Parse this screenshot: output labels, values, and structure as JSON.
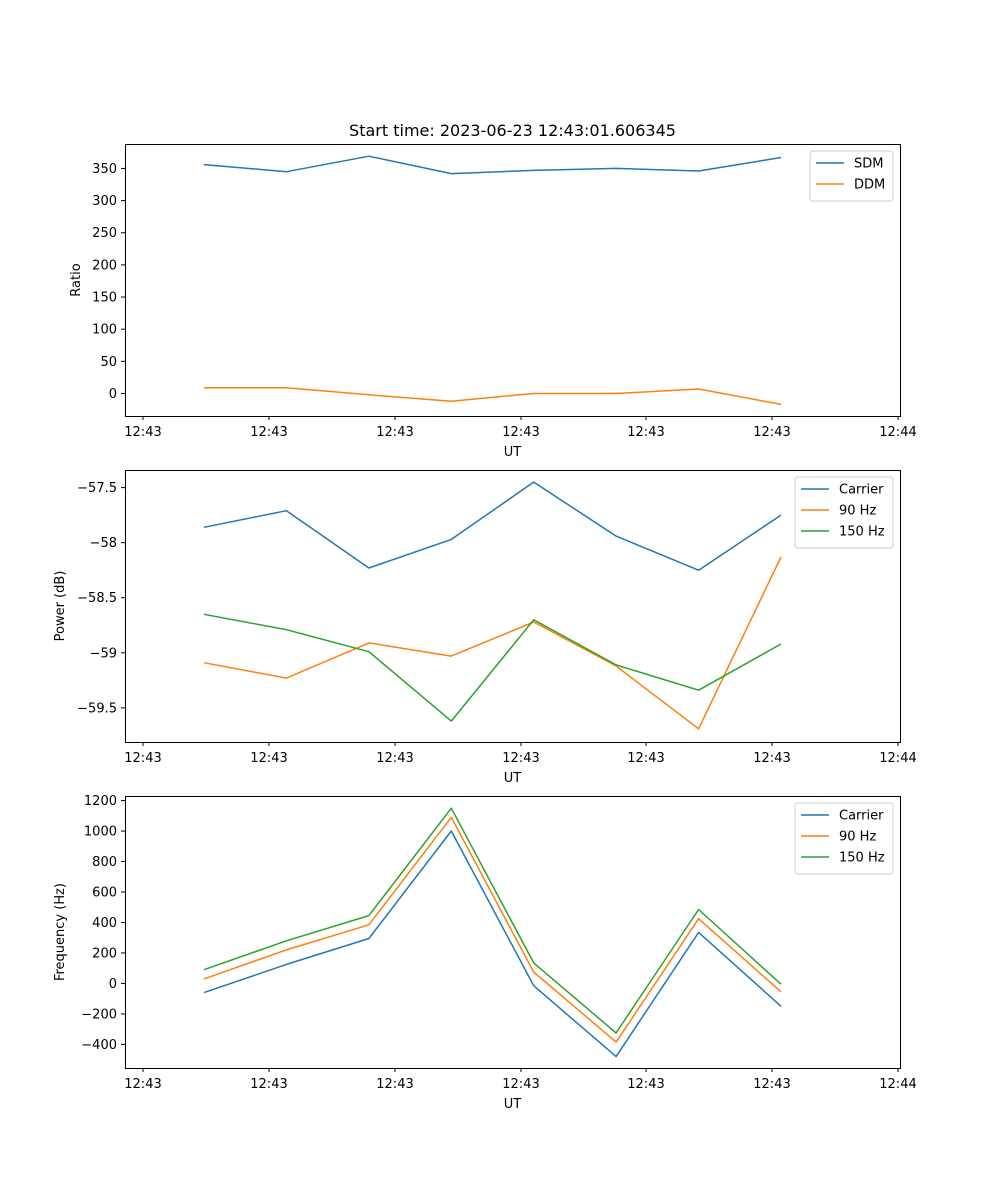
{
  "chart_data": [
    {
      "type": "line",
      "title": "Start time: 2023-06-23 12:43:01.606345",
      "xlabel": "UT",
      "ylabel": "Ratio",
      "x_ticks": [
        "12:43",
        "12:43",
        "12:43",
        "12:43",
        "12:43",
        "12:43",
        "12:43"
      ],
      "x_ticks_extra": [
        "12:44"
      ],
      "y_ticks": [
        0,
        50,
        100,
        150,
        200,
        250,
        300,
        350
      ],
      "ylim": [
        -35,
        388
      ],
      "grid": false,
      "legend_position": "upper right",
      "series": [
        {
          "name": "SDM",
          "color": "#1f77b4",
          "values": [
            356,
            345,
            369,
            342,
            347,
            350,
            346,
            367
          ]
        },
        {
          "name": "DDM",
          "color": "#ff7f0e",
          "values": [
            9,
            9,
            -2,
            -12,
            0,
            0,
            7,
            -17
          ]
        }
      ]
    },
    {
      "type": "line",
      "title": "",
      "xlabel": "UT",
      "ylabel": "Power (dB)",
      "x_ticks": [
        "12:43",
        "12:43",
        "12:43",
        "12:43",
        "12:43",
        "12:43",
        "12:43"
      ],
      "x_ticks_extra": [
        "12:44"
      ],
      "y_ticks": [
        -57.5,
        -58.0,
        -58.5,
        -59.0,
        -59.5
      ],
      "ylim": [
        -59.81,
        -57.34
      ],
      "grid": false,
      "legend_position": "upper right",
      "series": [
        {
          "name": "Carrier",
          "color": "#1f77b4",
          "values": [
            -57.86,
            -57.71,
            -58.23,
            -57.97,
            -57.45,
            -57.94,
            -58.25,
            -57.75
          ]
        },
        {
          "name": "90 Hz",
          "color": "#ff7f0e",
          "values": [
            -59.09,
            -59.23,
            -58.91,
            -59.03,
            -58.72,
            -59.12,
            -59.69,
            -58.13
          ]
        },
        {
          "name": "150 Hz",
          "color": "#2ca02c",
          "values": [
            -58.65,
            -58.79,
            -58.99,
            -59.62,
            -58.7,
            -59.11,
            -59.34,
            -58.92
          ]
        }
      ]
    },
    {
      "type": "line",
      "title": "",
      "xlabel": "UT",
      "ylabel": "Frequency (Hz)",
      "x_ticks": [
        "12:43",
        "12:43",
        "12:43",
        "12:43",
        "12:43",
        "12:43",
        "12:43"
      ],
      "x_ticks_extra": [
        "12:44"
      ],
      "y_ticks": [
        -400,
        -200,
        0,
        200,
        400,
        600,
        800,
        1000,
        1200
      ],
      "ylim": [
        -555,
        1230
      ],
      "grid": false,
      "legend_position": "upper right",
      "series": [
        {
          "name": "Carrier",
          "color": "#1f77b4",
          "values": [
            -60,
            125,
            295,
            1000,
            -15,
            -480,
            335,
            -150
          ]
        },
        {
          "name": "90 Hz",
          "color": "#ff7f0e",
          "values": [
            30,
            220,
            385,
            1090,
            75,
            -385,
            425,
            -55
          ]
        },
        {
          "name": "150 Hz",
          "color": "#2ca02c",
          "values": [
            90,
            280,
            445,
            1150,
            135,
            -325,
            485,
            -5
          ]
        }
      ]
    }
  ]
}
